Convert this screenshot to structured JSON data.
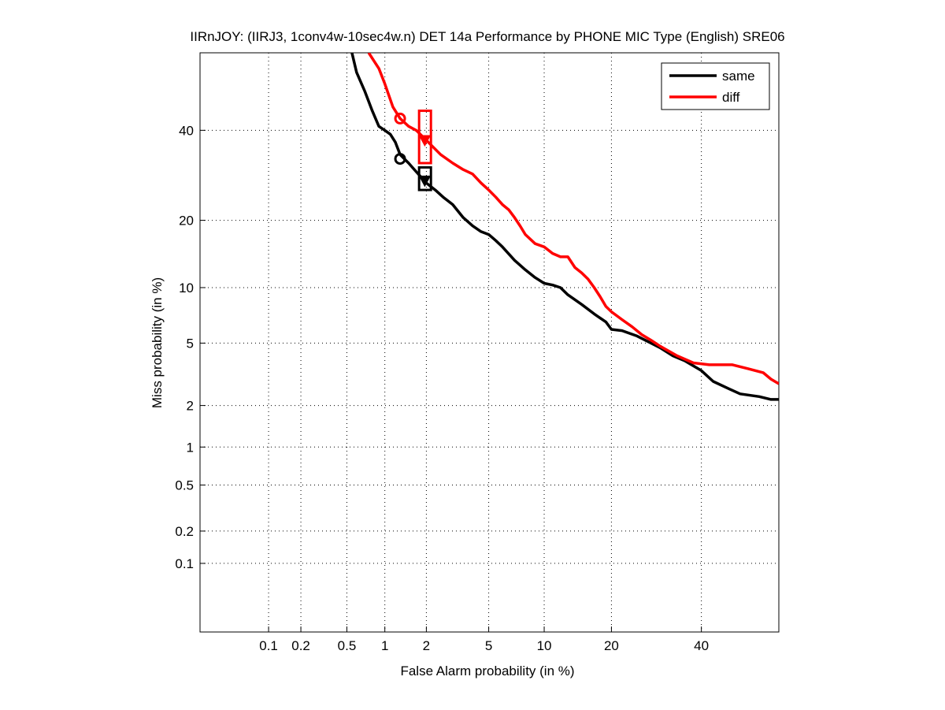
{
  "chart_data": {
    "type": "line",
    "title": "IIRnJOY: (IIRJ3, 1conv4w-10sec4w.n) DET 14a Performance by PHONE MIC Type (English) SRE06",
    "xlabel": "False Alarm probability (in %)",
    "ylabel": "Miss probability (in %)",
    "x_scale": "probit",
    "y_scale": "probit",
    "xlim": [
      0.02,
      60
    ],
    "ylim": [
      0.02,
      60
    ],
    "grid": true,
    "legend_position": "top-right",
    "x_ticks": [
      {
        "value": 0.1,
        "label": "0.1"
      },
      {
        "value": 0.2,
        "label": "0.2"
      },
      {
        "value": 0.5,
        "label": "0.5"
      },
      {
        "value": 1,
        "label": "1"
      },
      {
        "value": 2,
        "label": "2"
      },
      {
        "value": 5,
        "label": "5"
      },
      {
        "value": 10,
        "label": "10"
      },
      {
        "value": 20,
        "label": "20"
      },
      {
        "value": 40,
        "label": "40"
      }
    ],
    "y_ticks": [
      {
        "value": 0.1,
        "label": "0.1"
      },
      {
        "value": 0.2,
        "label": "0.2"
      },
      {
        "value": 0.5,
        "label": "0.5"
      },
      {
        "value": 1,
        "label": "1"
      },
      {
        "value": 2,
        "label": "2"
      },
      {
        "value": 5,
        "label": "5"
      },
      {
        "value": 10,
        "label": "10"
      },
      {
        "value": 20,
        "label": "20"
      },
      {
        "value": 40,
        "label": "40"
      }
    ],
    "series": [
      {
        "name": "same",
        "color": "#000000",
        "points": [
          [
            0.55,
            60
          ],
          [
            0.6,
            55
          ],
          [
            0.7,
            50
          ],
          [
            0.8,
            45
          ],
          [
            0.9,
            41
          ],
          [
            1.0,
            40
          ],
          [
            1.1,
            39
          ],
          [
            1.2,
            37
          ],
          [
            1.3,
            34
          ],
          [
            1.5,
            32
          ],
          [
            1.7,
            30
          ],
          [
            2.0,
            27.5
          ],
          [
            2.3,
            26
          ],
          [
            2.6,
            24.5
          ],
          [
            3.0,
            23
          ],
          [
            3.5,
            20.5
          ],
          [
            4.0,
            19
          ],
          [
            4.5,
            18
          ],
          [
            5.0,
            17.5
          ],
          [
            5.5,
            16.5
          ],
          [
            6.0,
            15.5
          ],
          [
            7.0,
            13.5
          ],
          [
            8.0,
            12.2
          ],
          [
            9.0,
            11.2
          ],
          [
            10.0,
            10.5
          ],
          [
            11.0,
            10.3
          ],
          [
            12.0,
            10.0
          ],
          [
            13.0,
            9.2
          ],
          [
            15.0,
            8.2
          ],
          [
            17.0,
            7.3
          ],
          [
            19.0,
            6.6
          ],
          [
            20.0,
            6.0
          ],
          [
            22.0,
            5.9
          ],
          [
            25.0,
            5.5
          ],
          [
            28.0,
            5.0
          ],
          [
            30.0,
            4.7
          ],
          [
            33.0,
            4.2
          ],
          [
            36.0,
            3.9
          ],
          [
            40.0,
            3.4
          ],
          [
            43.0,
            2.9
          ],
          [
            47.0,
            2.6
          ],
          [
            50.0,
            2.4
          ],
          [
            55.0,
            2.3
          ],
          [
            58.0,
            2.2
          ],
          [
            60.0,
            2.2
          ]
        ],
        "markers": [
          {
            "kind": "circle",
            "x": 1.3,
            "y": 33
          },
          {
            "kind": "triangle",
            "x": 1.95,
            "y": 28
          }
        ],
        "box": {
          "x": [
            1.78,
            2.15
          ],
          "y": [
            26,
            31
          ]
        }
      },
      {
        "name": "diff",
        "color": "#ff0000",
        "points": [
          [
            0.75,
            60
          ],
          [
            0.9,
            56
          ],
          [
            1.0,
            52
          ],
          [
            1.15,
            46
          ],
          [
            1.3,
            43
          ],
          [
            1.5,
            41
          ],
          [
            1.7,
            40
          ],
          [
            2.0,
            37.5
          ],
          [
            2.5,
            34
          ],
          [
            3.0,
            32
          ],
          [
            3.5,
            30.5
          ],
          [
            4.0,
            29.5
          ],
          [
            4.5,
            27.5
          ],
          [
            5.0,
            26
          ],
          [
            5.5,
            24.5
          ],
          [
            6.0,
            23
          ],
          [
            6.5,
            22
          ],
          [
            7.0,
            20.5
          ],
          [
            7.5,
            19
          ],
          [
            8.0,
            17.5
          ],
          [
            9.0,
            16
          ],
          [
            10.0,
            15.5
          ],
          [
            11.0,
            14.5
          ],
          [
            12.0,
            14.0
          ],
          [
            13.0,
            14.0
          ],
          [
            14.0,
            12.5
          ],
          [
            15.0,
            11.8
          ],
          [
            16.0,
            11.0
          ],
          [
            17.0,
            10.0
          ],
          [
            18.0,
            9.0
          ],
          [
            19.0,
            8.0
          ],
          [
            20.0,
            7.5
          ],
          [
            22.0,
            6.8
          ],
          [
            24.0,
            6.2
          ],
          [
            26.0,
            5.6
          ],
          [
            28.0,
            5.2
          ],
          [
            30.0,
            4.8
          ],
          [
            34.0,
            4.2
          ],
          [
            38.0,
            3.8
          ],
          [
            42.0,
            3.7
          ],
          [
            48.0,
            3.7
          ],
          [
            52.0,
            3.5
          ],
          [
            56.0,
            3.3
          ],
          [
            58.0,
            3.0
          ],
          [
            60.0,
            2.8
          ]
        ],
        "markers": [
          {
            "kind": "circle",
            "x": 1.3,
            "y": 43
          },
          {
            "kind": "triangle",
            "x": 1.95,
            "y": 37.5
          }
        ],
        "box": {
          "x": [
            1.78,
            2.15
          ],
          "y": [
            32,
            45
          ]
        }
      }
    ]
  }
}
